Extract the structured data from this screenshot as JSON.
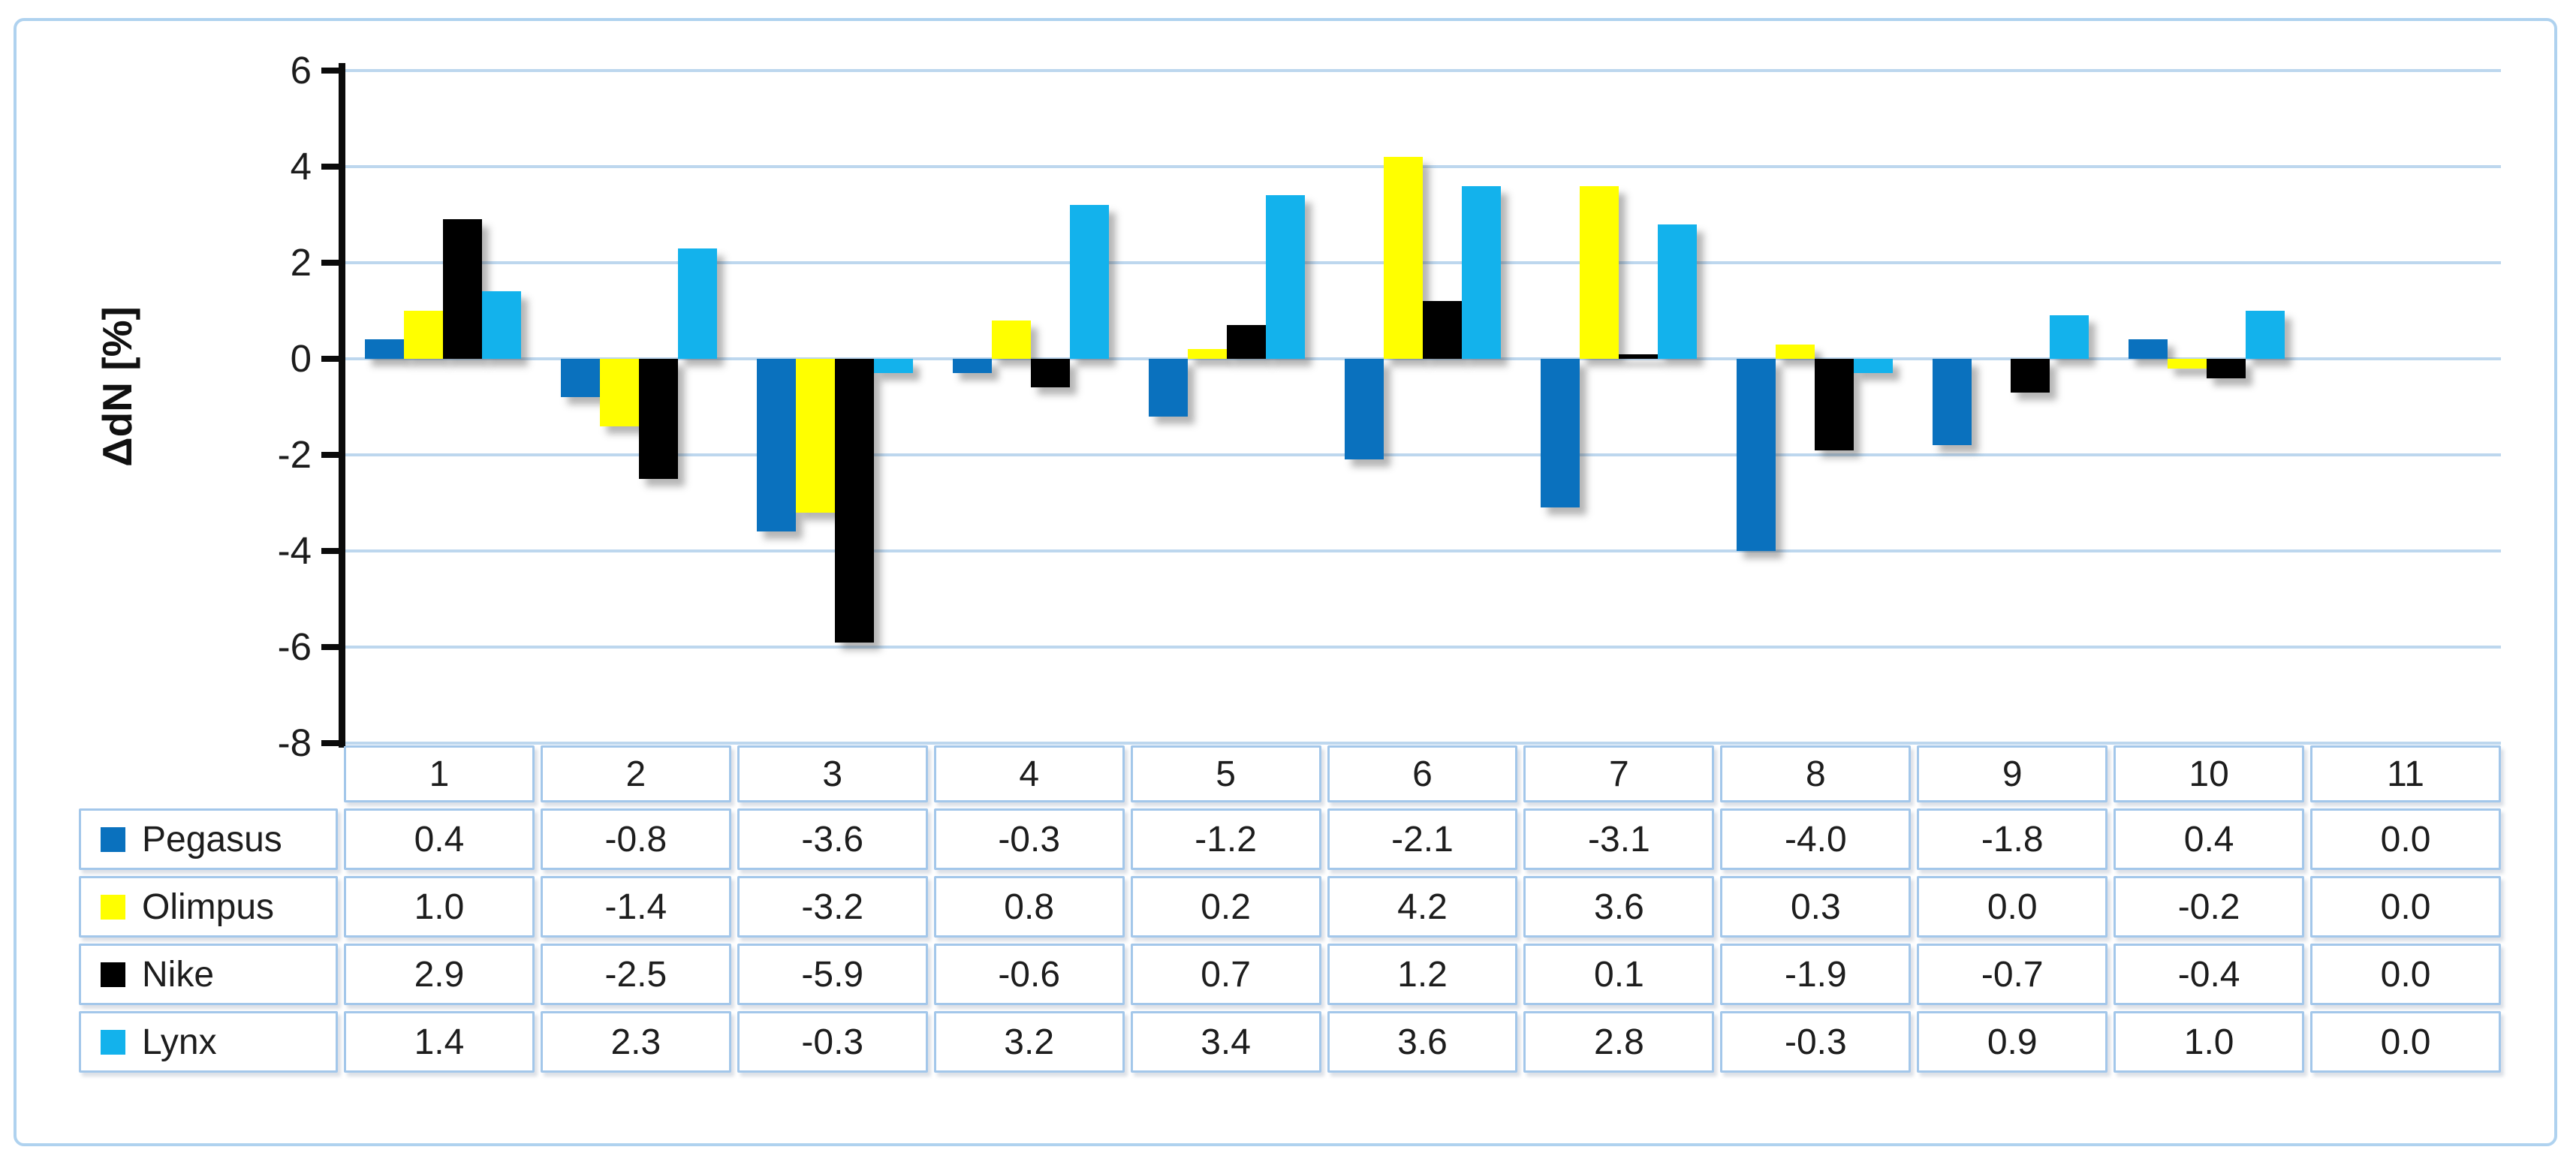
{
  "chart_data": {
    "type": "bar",
    "title": "",
    "ylabel": "ΔdN [%]",
    "ylim": [
      -8,
      6
    ],
    "ytick_step": 2,
    "yticks": [
      "6",
      "4",
      "2",
      "0",
      "-2",
      "-4",
      "-6",
      "-8"
    ],
    "grid": true,
    "legend_position": "left-of-data-table",
    "data_table_shown": true,
    "value_format": "one-decimal",
    "categories": [
      "1",
      "2",
      "3",
      "4",
      "5",
      "6",
      "7",
      "8",
      "9",
      "10",
      "11"
    ],
    "series": [
      {
        "name": "Pegasus",
        "color": "#0A71BE",
        "values": [
          0.4,
          -0.8,
          -3.6,
          -0.3,
          -1.2,
          -2.1,
          -3.1,
          -4.0,
          -1.8,
          0.4,
          0.0
        ]
      },
      {
        "name": "Olimpus",
        "color": "#FFFF00",
        "values": [
          1.0,
          -1.4,
          -3.2,
          0.8,
          0.2,
          4.2,
          3.6,
          0.3,
          0.0,
          -0.2,
          0.0
        ]
      },
      {
        "name": "Nike",
        "color": "#000000",
        "values": [
          2.9,
          -2.5,
          -5.9,
          -0.6,
          0.7,
          1.2,
          0.1,
          -1.9,
          -0.7,
          -0.4,
          0.0
        ]
      },
      {
        "name": "Lynx",
        "color": "#13B2EC",
        "values": [
          1.4,
          2.3,
          -0.3,
          3.2,
          3.4,
          3.6,
          2.8,
          -0.3,
          0.9,
          1.0,
          0.0
        ]
      }
    ]
  },
  "ui_colors": {
    "gridline": "#BDD7EE",
    "axis_line": "#0B0B0B",
    "table_border": "#A3C7EA",
    "figure_border": "#AFD2EF",
    "text": "#1D1D1D",
    "background": "#FFFFFF"
  }
}
